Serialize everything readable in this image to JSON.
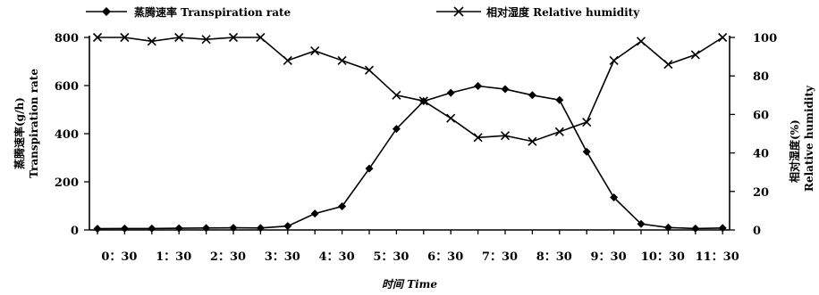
{
  "chart_data": {
    "type": "line",
    "xlabel": "时间 Time",
    "y_left_label_cn": "蒸腾速率(g/h)",
    "y_left_label_en": "Transpiration rate",
    "y_right_label_cn": "相对湿度(%)",
    "y_right_label_en": "Relative humidity",
    "y_left_lim": [
      0,
      800
    ],
    "y_right_lim": [
      0,
      100
    ],
    "y_left_ticks": [
      "0",
      "200",
      "400",
      "600",
      "800"
    ],
    "y_right_ticks": [
      "0",
      "20",
      "40",
      "60",
      "80",
      "100"
    ],
    "x_tick_labels": [
      "0：30",
      "1：30",
      "2：30",
      "3：30",
      "4：30",
      "5：30",
      "6：30",
      "7：30",
      "8：30",
      "9：30",
      "10：30",
      "11：30"
    ],
    "legend": {
      "placement": "top",
      "items": [
        {
          "label": "蒸腾速率 Transpiration rate",
          "marker": "diamond"
        },
        {
          "label": "相对湿度 Relative humidity",
          "marker": "x"
        }
      ]
    },
    "series": [
      {
        "name": "蒸腾速率 Transpiration rate",
        "axis": "left",
        "marker": "diamond",
        "x": [
          0.0,
          0.5,
          1.0,
          1.5,
          2.0,
          2.5,
          3.0,
          3.5,
          4.0,
          4.5,
          5.0,
          5.5,
          6.0,
          6.5,
          7.0,
          7.5,
          8.0,
          8.5,
          9.0,
          9.5,
          10.0,
          10.5,
          11.0,
          11.5
        ],
        "values": [
          5,
          6,
          6,
          7,
          8,
          9,
          8,
          16,
          68,
          98,
          255,
          420,
          535,
          570,
          598,
          585,
          560,
          540,
          325,
          135,
          25,
          10,
          6,
          8
        ]
      },
      {
        "name": "相对湿度 Relative humidity",
        "axis": "right",
        "marker": "x",
        "x": [
          0.0,
          0.5,
          1.0,
          1.5,
          2.0,
          2.5,
          3.0,
          3.5,
          4.0,
          4.5,
          5.0,
          5.5,
          6.0,
          6.5,
          7.0,
          7.5,
          8.0,
          8.5,
          9.0,
          9.5,
          10.0,
          10.5,
          11.0,
          11.5
        ],
        "values": [
          100,
          100,
          98,
          100,
          99,
          100,
          100,
          88,
          93,
          88,
          83,
          70,
          67,
          58,
          48,
          49,
          46,
          51,
          56,
          88,
          98,
          86,
          91,
          100
        ]
      }
    ]
  }
}
